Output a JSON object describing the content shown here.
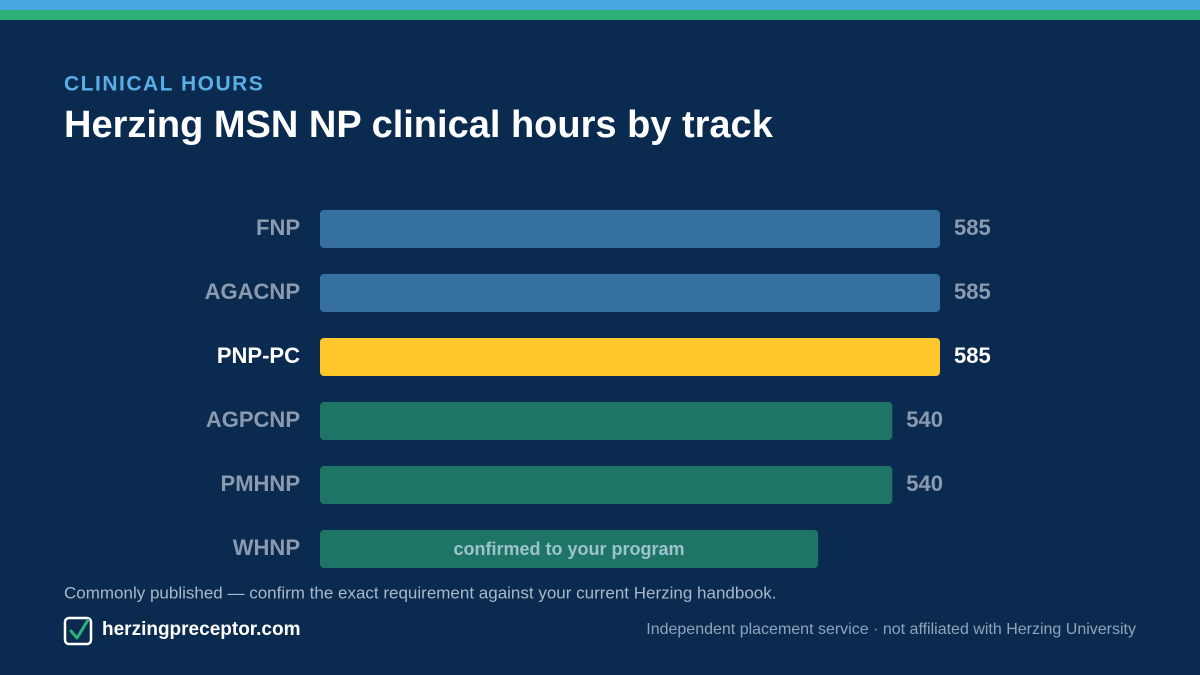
{
  "chart_data": {
    "type": "bar",
    "orientation": "horizontal",
    "eyebrow": "CLINICAL HOURS",
    "title": "Herzing MSN NP clinical hours by track",
    "categories": [
      "FNP",
      "AGACNP",
      "PNP-PC",
      "AGPCNP",
      "PMHNP",
      "WHNP"
    ],
    "values": [
      585,
      585,
      585,
      540,
      540,
      470
    ],
    "colors": [
      "#36709f",
      "#36709f",
      "#ffc72c",
      "#1e7565",
      "#1e7565",
      "#1e7565"
    ],
    "highlight": "PNP-PC",
    "annotation": {
      "text": "confirmed to your program",
      "category": "WHNP"
    },
    "xlim": [
      0,
      650
    ],
    "footnote": "Commonly published — confirm the exact requirement against your current Herzing handbook.",
    "brand": "herzingpreceptor.com",
    "disclaimer": "Independent placement service · not affiliated with Herzing University"
  }
}
